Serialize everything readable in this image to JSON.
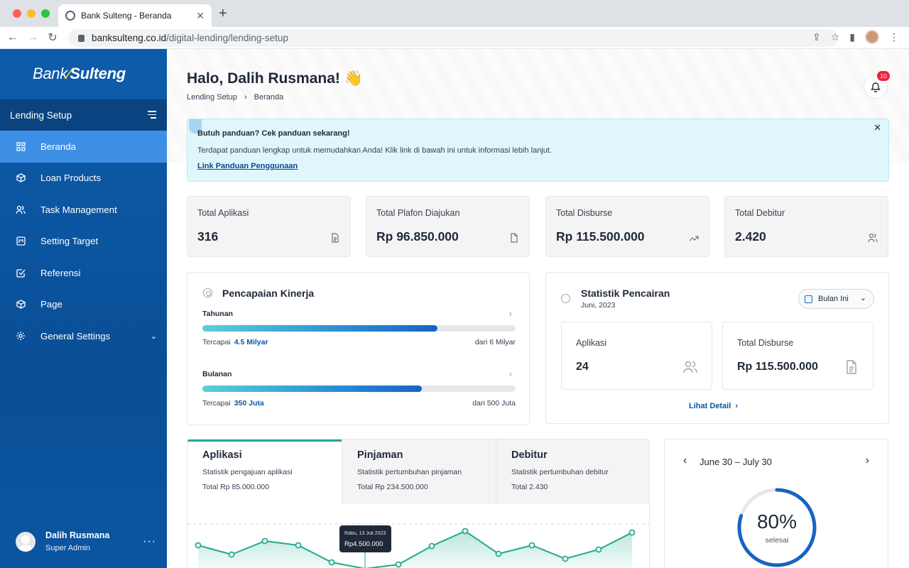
{
  "browser": {
    "tab_title": "Bank Sulteng - Beranda",
    "url_host": "banksulteng.co.id",
    "url_path": "/digital-lending/lending-setup"
  },
  "brand": {
    "part1": "Bank",
    "part2": "Sulteng",
    "accent": "#f2c230",
    "primary": "#0d5cab"
  },
  "sidebar": {
    "section": "Lending Setup",
    "items": [
      {
        "label": "Beranda",
        "icon": "grid-icon",
        "active": true
      },
      {
        "label": "Loan Products",
        "icon": "box-icon"
      },
      {
        "label": "Task Management",
        "icon": "users-icon"
      },
      {
        "label": "Setting Target",
        "icon": "board-icon"
      },
      {
        "label": "Referensi",
        "icon": "check-square-icon"
      },
      {
        "label": "Page",
        "icon": "box-icon"
      },
      {
        "label": "General Settings",
        "icon": "gear-icon",
        "expandable": true
      }
    ],
    "user": {
      "name": "Dalih Rusmana",
      "role": "Super Admin"
    }
  },
  "header": {
    "greeting": "Halo, Dalih Rusmana! 👋",
    "breadcrumb": [
      "Lending Setup",
      "Beranda"
    ],
    "notif_count": "10"
  },
  "alert": {
    "title": "Butuh panduan? Cek panduan sekarang!",
    "text": "Terdapat panduan lengkap untuk memudahkan Anda! Klik link di bawah ini untuk informasi lebih lanjut.",
    "link": "Link Panduan Penggunaan"
  },
  "stats": [
    {
      "label": "Total Aplikasi",
      "value": "316",
      "icon": "document-icon"
    },
    {
      "label": "Total Plafon Diajukan",
      "value": "Rp 96.850.000",
      "icon": "file-icon"
    },
    {
      "label": "Total Disburse",
      "value": "Rp 115.500.000",
      "icon": "trend-up-icon"
    },
    {
      "label": "Total Debitur",
      "value": "2.420",
      "icon": "users-icon"
    }
  ],
  "kinerja": {
    "title": "Pencapaian Kinerja",
    "rows": [
      {
        "label": "Tahunan",
        "prefix": "Tercapai",
        "achieved": "4.5 Milyar",
        "target": "dari 6 Milyar",
        "progress": 0.75
      },
      {
        "label": "Bulanan",
        "prefix": "Tercapai",
        "achieved": "350 Juta",
        "target": "dari 500 Juta",
        "progress": 0.7
      }
    ]
  },
  "pencairan": {
    "title": "Statistik Pencairan",
    "date": "Juni, 2023",
    "filter": "Bulan Ini",
    "boxes": [
      {
        "label": "Aplikasi",
        "value": "24",
        "icon": "users-icon"
      },
      {
        "label": "Total Disburse",
        "value": "Rp 115.500.000",
        "icon": "document-icon"
      }
    ],
    "more": "Lihat Detail"
  },
  "tabs": [
    {
      "name": "Aplikasi",
      "desc": "Statistik pengajuan aplikasi",
      "total": "Total Rp 85.000.000",
      "active": true
    },
    {
      "name": "Pinjaman",
      "desc": "Statistik pertumbuhan pinjaman",
      "total": "Total Rp 234.500.000"
    },
    {
      "name": "Debitur",
      "desc": "Statistik pertumbuhan debitur",
      "total": "Total 2.430"
    }
  ],
  "tooltip": {
    "date": "Rabu, 13 Juli 2023",
    "value": "Rp4.500.000"
  },
  "period": {
    "range": "June 30 – July 30",
    "percent": "80%",
    "label": "selesai",
    "progress": 0.8
  }
}
